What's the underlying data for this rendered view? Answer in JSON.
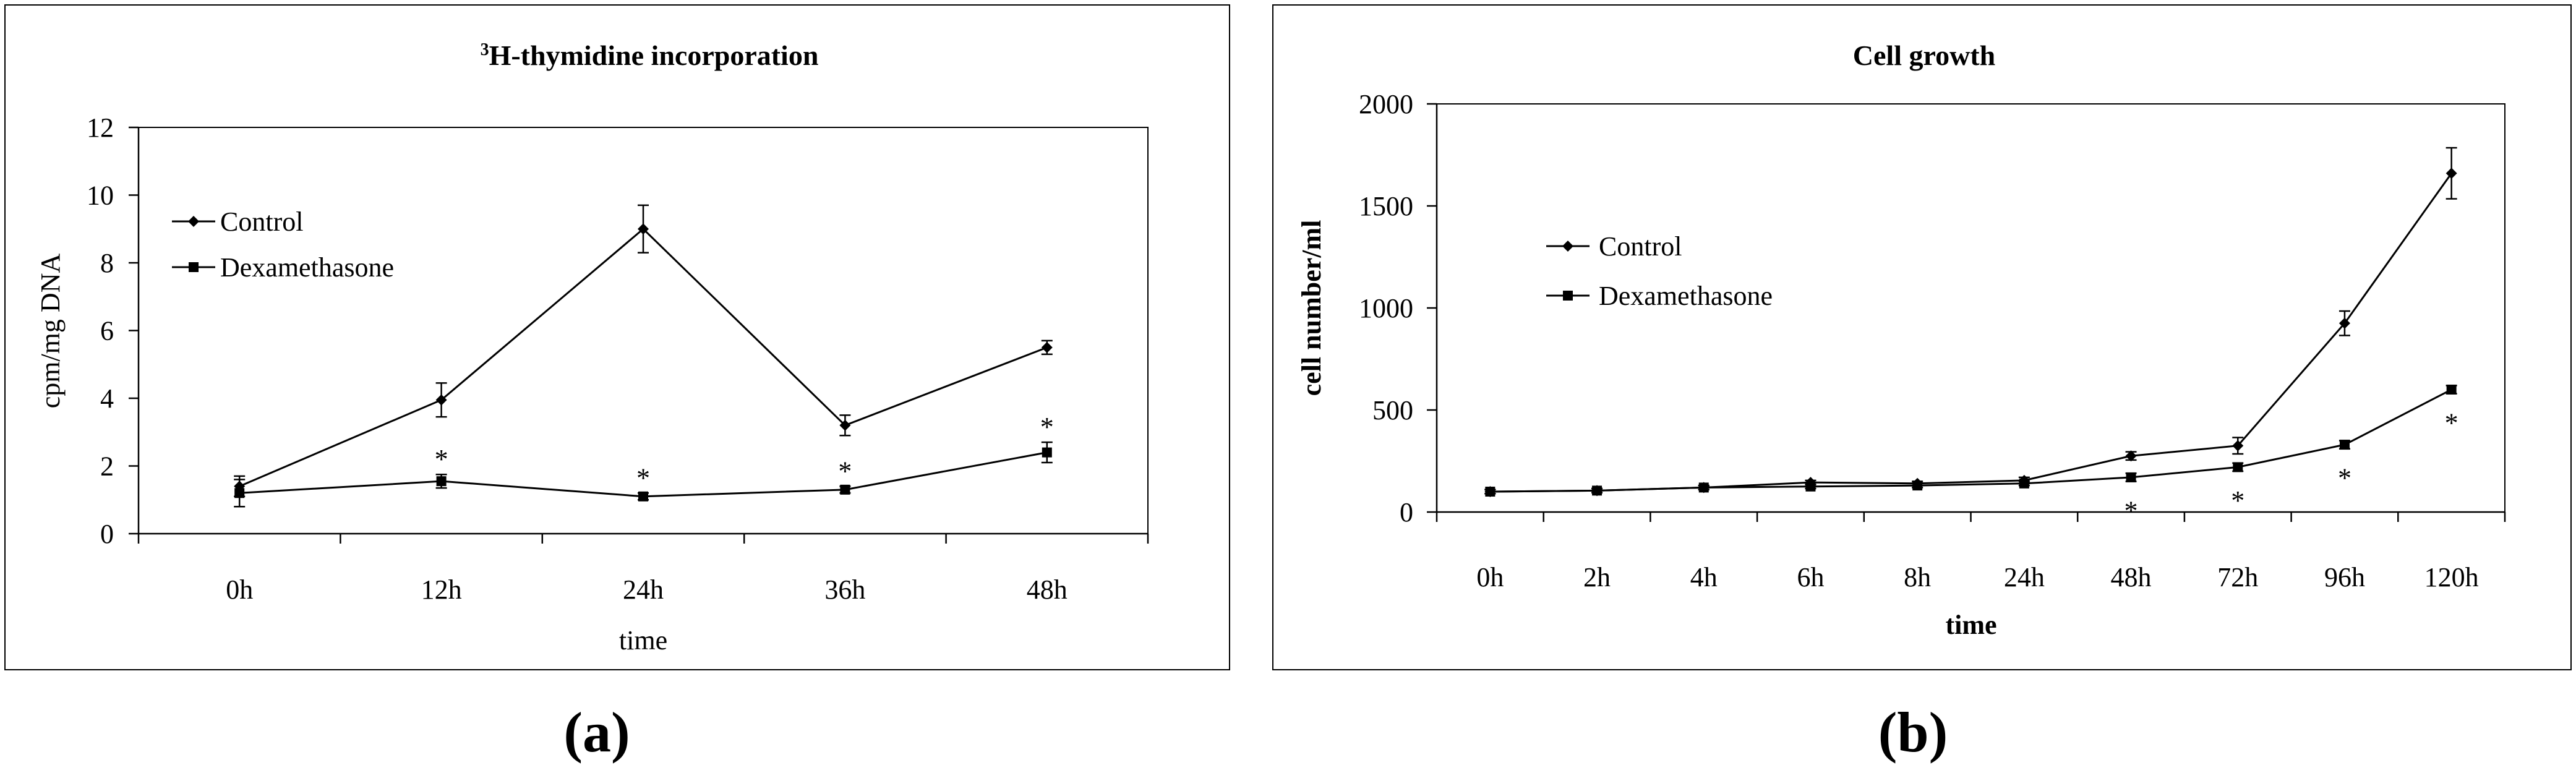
{
  "figure": {
    "panel_labels": [
      "(a)",
      "(b)"
    ]
  },
  "chart_data": [
    {
      "type": "line",
      "title": "H-thymidine incorporation",
      "title_superscript": "3",
      "xlabel": "time",
      "ylabel": "cpm/mg DNA",
      "categories": [
        "0h",
        "12h",
        "24h",
        "36h",
        "48h"
      ],
      "ylim": [
        0,
        12
      ],
      "yticks": [
        0,
        2,
        4,
        6,
        8,
        10,
        12
      ],
      "grid": false,
      "legend_position": "top-left",
      "series": [
        {
          "name": "Control",
          "marker": "diamond",
          "values": [
            1.4,
            3.95,
            9.0,
            3.2,
            5.5
          ],
          "errors": [
            0.3,
            0.5,
            0.7,
            0.3,
            0.2
          ]
        },
        {
          "name": "Dexamethasone",
          "marker": "square",
          "values": [
            1.2,
            1.55,
            1.1,
            1.3,
            2.4
          ],
          "errors": [
            0.4,
            0.2,
            0.1,
            0.1,
            0.3
          ]
        }
      ],
      "annotations": [
        {
          "category": "12h",
          "text": "*"
        },
        {
          "category": "24h",
          "text": "*"
        },
        {
          "category": "36h",
          "text": "*"
        },
        {
          "category": "48h",
          "text": "*"
        }
      ]
    },
    {
      "type": "line",
      "title": "Cell growth",
      "xlabel": "time",
      "ylabel": "cell number/ml",
      "categories": [
        "0h",
        "2h",
        "4h",
        "6h",
        "8h",
        "24h",
        "48h",
        "72h",
        "96h",
        "120h"
      ],
      "ylim": [
        0,
        2000
      ],
      "yticks": [
        0,
        500,
        1000,
        1500,
        2000
      ],
      "grid": false,
      "legend_position": "center-left",
      "series": [
        {
          "name": "Control",
          "marker": "diamond",
          "values": [
            100,
            105,
            120,
            145,
            140,
            155,
            275,
            325,
            925,
            1660
          ],
          "errors": [
            10,
            10,
            10,
            10,
            10,
            15,
            20,
            40,
            60,
            125
          ]
        },
        {
          "name": "Dexamethasone",
          "marker": "square",
          "values": [
            100,
            105,
            120,
            125,
            130,
            140,
            170,
            220,
            330,
            600
          ],
          "errors": [
            10,
            10,
            10,
            10,
            10,
            10,
            20,
            20,
            20,
            20
          ]
        }
      ],
      "annotations": [
        {
          "category": "48h",
          "text": "*"
        },
        {
          "category": "72h",
          "text": "*"
        },
        {
          "category": "96h",
          "text": "*"
        },
        {
          "category": "120h",
          "text": "*"
        }
      ]
    }
  ]
}
